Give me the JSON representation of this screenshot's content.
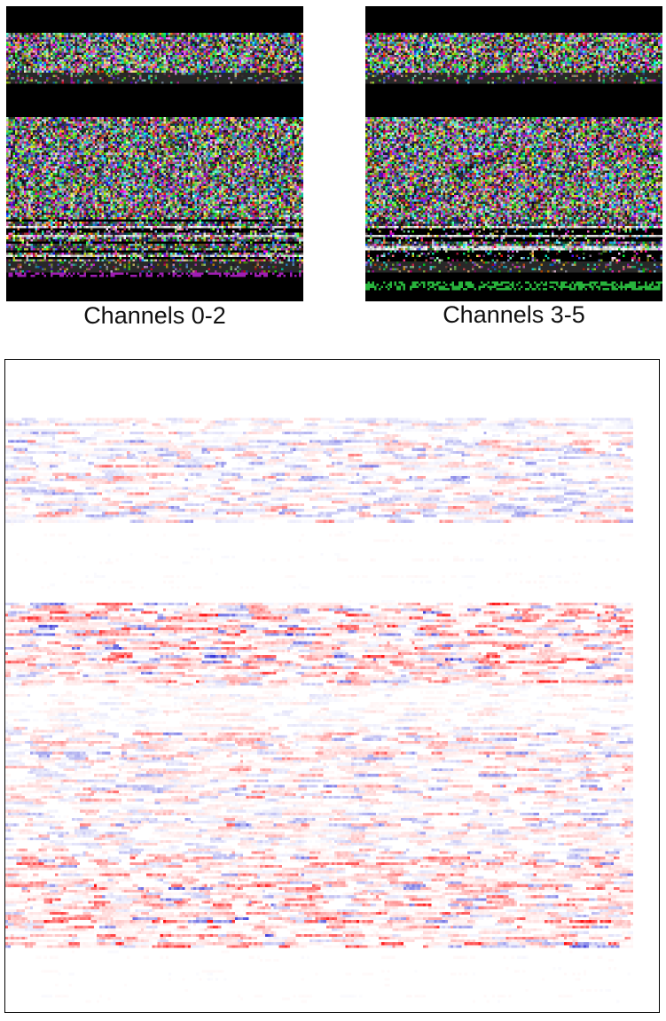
{
  "panels": [
    {
      "caption": "Channels 0-2",
      "kind": "rgb-noise-image"
    },
    {
      "caption": "Channels 3-5",
      "kind": "rgb-noise-image"
    }
  ],
  "heatmap": {
    "kind": "diverging-red-blue",
    "colors": {
      "positive": "#e01010",
      "negative": "#3030d0",
      "neutral": "#ffffff"
    }
  }
}
